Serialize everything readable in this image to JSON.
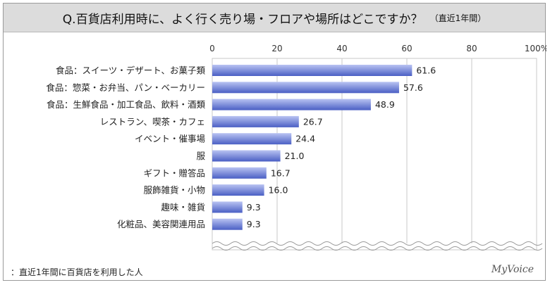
{
  "title": "Q.百貨店利用時に、よく行く売り場・フロアや場所はどこですか？",
  "title_note": "（直近1年間）",
  "footnote": "：直近1年間に百貨店を利用した人",
  "logo": "MyVoice",
  "chart_data": {
    "type": "bar",
    "orientation": "horizontal",
    "categories": [
      "食品：スイーツ・デザート、お菓子類",
      "食品：惣菜・お弁当、パン・ベーカリー",
      "食品：生鮮食品・加工食品、飲料・酒類",
      "レストラン、喫茶・カフェ",
      "イベント・催事場",
      "服",
      "ギフト・贈答品",
      "服飾雑貨・小物",
      "趣味・雑貨",
      "化粧品、美容関連用品"
    ],
    "values": [
      61.6,
      57.6,
      48.9,
      26.7,
      24.4,
      21.0,
      16.7,
      16.0,
      9.3,
      9.3
    ],
    "value_labels": [
      "61.6",
      "57.6",
      "48.9",
      "26.7",
      "24.4",
      "21.0",
      "16.7",
      "16.0",
      "9.3",
      "9.3"
    ],
    "xlim": [
      0,
      100
    ],
    "ticks": [
      0,
      20,
      40,
      60,
      80,
      100
    ],
    "tick_labels": [
      "0",
      "20",
      "40",
      "60",
      "80",
      "100%"
    ],
    "grid": true,
    "colors": {
      "bar_dark": "#4a5fc4",
      "bar_light": "#b9c3f2",
      "grid": "#c8c8c8"
    }
  }
}
